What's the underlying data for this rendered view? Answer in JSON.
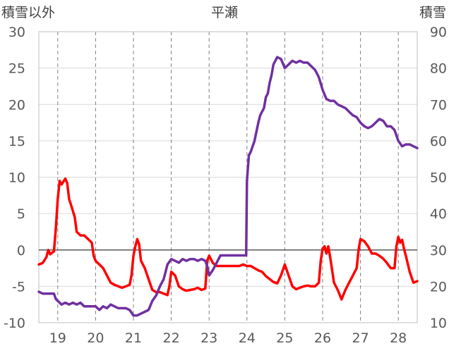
{
  "chart_data": {
    "type": "line",
    "title": "平瀬",
    "y_left_label": "積雪以外",
    "y_right_label": "積雪",
    "x_ticks": [
      "19",
      "20",
      "21",
      "22",
      "23",
      "24",
      "25",
      "26",
      "27",
      "28"
    ],
    "x_range": [
      18.5,
      28.5
    ],
    "y_left_range": [
      -10,
      30
    ],
    "y_left_ticks": [
      30,
      25,
      20,
      15,
      10,
      5,
      0,
      -5,
      -10
    ],
    "y_right_range": [
      10,
      90
    ],
    "y_right_ticks": [
      90,
      80,
      70,
      60,
      50,
      40,
      30,
      20,
      10
    ],
    "grid": {
      "x_dashed": true,
      "y": true
    },
    "series": [
      {
        "axis": "left",
        "color": "#ff0000",
        "points": [
          [
            18.5,
            -2.0
          ],
          [
            18.6,
            -1.8
          ],
          [
            18.7,
            -1.0
          ],
          [
            18.75,
            0.0
          ],
          [
            18.8,
            -0.6
          ],
          [
            18.9,
            -0.2
          ],
          [
            18.95,
            3.0
          ],
          [
            19.0,
            7.0
          ],
          [
            19.05,
            9.5
          ],
          [
            19.1,
            9.0
          ],
          [
            19.2,
            9.8
          ],
          [
            19.25,
            9.2
          ],
          [
            19.3,
            7.0
          ],
          [
            19.35,
            6.2
          ],
          [
            19.45,
            4.5
          ],
          [
            19.5,
            2.5
          ],
          [
            19.6,
            2.0
          ],
          [
            19.7,
            2.0
          ],
          [
            19.8,
            1.5
          ],
          [
            19.9,
            1.0
          ],
          [
            19.95,
            -0.8
          ],
          [
            20.0,
            -1.5
          ],
          [
            20.1,
            -2.0
          ],
          [
            20.2,
            -2.5
          ],
          [
            20.3,
            -3.5
          ],
          [
            20.4,
            -4.5
          ],
          [
            20.5,
            -4.8
          ],
          [
            20.6,
            -5.0
          ],
          [
            20.7,
            -5.2
          ],
          [
            20.8,
            -5.0
          ],
          [
            20.9,
            -4.8
          ],
          [
            20.95,
            -3.5
          ],
          [
            21.0,
            -0.8
          ],
          [
            21.05,
            0.5
          ],
          [
            21.1,
            1.5
          ],
          [
            21.15,
            0.8
          ],
          [
            21.2,
            -1.5
          ],
          [
            21.3,
            -2.5
          ],
          [
            21.4,
            -4.0
          ],
          [
            21.5,
            -5.5
          ],
          [
            21.6,
            -5.8
          ],
          [
            21.7,
            -5.8
          ],
          [
            21.8,
            -6.0
          ],
          [
            21.9,
            -6.2
          ],
          [
            21.95,
            -5.0
          ],
          [
            22.0,
            -3.0
          ],
          [
            22.1,
            -3.5
          ],
          [
            22.2,
            -5.0
          ],
          [
            22.3,
            -5.4
          ],
          [
            22.4,
            -5.6
          ],
          [
            22.5,
            -5.5
          ],
          [
            22.6,
            -5.4
          ],
          [
            22.7,
            -5.2
          ],
          [
            22.8,
            -5.5
          ],
          [
            22.9,
            -5.3
          ],
          [
            22.95,
            -1.5
          ],
          [
            23.0,
            -0.8
          ],
          [
            23.1,
            -1.8
          ],
          [
            23.2,
            -2.2
          ],
          [
            23.3,
            -2.2
          ],
          [
            23.4,
            -2.2
          ],
          [
            23.5,
            -2.2
          ],
          [
            23.6,
            -2.2
          ],
          [
            23.7,
            -2.2
          ],
          [
            23.8,
            -2.2
          ],
          [
            23.9,
            -2.0
          ],
          [
            24.0,
            -2.2
          ],
          [
            24.1,
            -2.2
          ],
          [
            24.2,
            -2.5
          ],
          [
            24.3,
            -2.8
          ],
          [
            24.4,
            -3.0
          ],
          [
            24.5,
            -3.6
          ],
          [
            24.6,
            -4.0
          ],
          [
            24.7,
            -4.4
          ],
          [
            24.8,
            -4.6
          ],
          [
            24.9,
            -3.5
          ],
          [
            25.0,
            -2.0
          ],
          [
            25.1,
            -3.5
          ],
          [
            25.2,
            -5.0
          ],
          [
            25.3,
            -5.4
          ],
          [
            25.4,
            -5.2
          ],
          [
            25.5,
            -5.0
          ],
          [
            25.6,
            -4.9
          ],
          [
            25.7,
            -5.0
          ],
          [
            25.8,
            -5.0
          ],
          [
            25.9,
            -4.5
          ],
          [
            25.95,
            -1.5
          ],
          [
            26.0,
            0.2
          ],
          [
            26.05,
            0.5
          ],
          [
            26.1,
            -0.5
          ],
          [
            26.15,
            0.5
          ],
          [
            26.2,
            -1.0
          ],
          [
            26.3,
            -4.5
          ],
          [
            26.4,
            -5.5
          ],
          [
            26.5,
            -6.8
          ],
          [
            26.6,
            -5.5
          ],
          [
            26.7,
            -4.5
          ],
          [
            26.8,
            -3.5
          ],
          [
            26.9,
            -2.5
          ],
          [
            26.95,
            0.0
          ],
          [
            27.0,
            1.5
          ],
          [
            27.1,
            1.2
          ],
          [
            27.2,
            0.5
          ],
          [
            27.3,
            -0.5
          ],
          [
            27.4,
            -0.5
          ],
          [
            27.5,
            -0.8
          ],
          [
            27.6,
            -1.2
          ],
          [
            27.7,
            -1.8
          ],
          [
            27.8,
            -2.5
          ],
          [
            27.9,
            -2.5
          ],
          [
            27.95,
            0.5
          ],
          [
            28.0,
            1.8
          ],
          [
            28.05,
            1.0
          ],
          [
            28.1,
            1.4
          ],
          [
            28.15,
            0.2
          ],
          [
            28.2,
            -0.8
          ],
          [
            28.3,
            -3.0
          ],
          [
            28.4,
            -4.5
          ],
          [
            28.5,
            -4.3
          ]
        ]
      },
      {
        "axis": "right",
        "color": "#7030a0",
        "points": [
          [
            18.5,
            18.5
          ],
          [
            18.6,
            18.0
          ],
          [
            18.7,
            18.0
          ],
          [
            18.8,
            18.0
          ],
          [
            18.9,
            18.0
          ],
          [
            18.95,
            16.5
          ],
          [
            19.0,
            16.0
          ],
          [
            19.1,
            15.0
          ],
          [
            19.2,
            15.5
          ],
          [
            19.3,
            15.0
          ],
          [
            19.4,
            15.5
          ],
          [
            19.5,
            15.0
          ],
          [
            19.6,
            15.5
          ],
          [
            19.7,
            14.5
          ],
          [
            19.8,
            14.5
          ],
          [
            19.9,
            14.5
          ],
          [
            20.0,
            14.5
          ],
          [
            20.1,
            13.5
          ],
          [
            20.2,
            14.5
          ],
          [
            20.3,
            14.0
          ],
          [
            20.4,
            15.0
          ],
          [
            20.5,
            14.5
          ],
          [
            20.6,
            14.0
          ],
          [
            20.7,
            14.0
          ],
          [
            20.8,
            14.0
          ],
          [
            20.9,
            13.5
          ],
          [
            21.0,
            12.0
          ],
          [
            21.1,
            12.0
          ],
          [
            21.2,
            12.5
          ],
          [
            21.3,
            13.0
          ],
          [
            21.4,
            13.5
          ],
          [
            21.5,
            16.0
          ],
          [
            21.6,
            17.5
          ],
          [
            21.7,
            20.0
          ],
          [
            21.8,
            22.0
          ],
          [
            21.9,
            26.0
          ],
          [
            22.0,
            27.5
          ],
          [
            22.1,
            27.0
          ],
          [
            22.2,
            26.5
          ],
          [
            22.3,
            27.5
          ],
          [
            22.4,
            27.0
          ],
          [
            22.5,
            27.5
          ],
          [
            22.6,
            27.5
          ],
          [
            22.7,
            27.0
          ],
          [
            22.8,
            27.5
          ],
          [
            22.9,
            27.0
          ],
          [
            22.95,
            25.5
          ],
          [
            23.0,
            23.0
          ],
          [
            23.1,
            24.5
          ],
          [
            23.2,
            26.5
          ],
          [
            23.3,
            28.5
          ],
          [
            23.4,
            28.5
          ],
          [
            23.5,
            28.5
          ],
          [
            23.6,
            28.5
          ],
          [
            23.7,
            28.5
          ],
          [
            23.8,
            28.5
          ],
          [
            23.9,
            28.5
          ],
          [
            23.98,
            28.5
          ],
          [
            24.0,
            49.0
          ],
          [
            24.05,
            56.0
          ],
          [
            24.1,
            57.0
          ],
          [
            24.2,
            60.0
          ],
          [
            24.3,
            65.0
          ],
          [
            24.35,
            67.0
          ],
          [
            24.4,
            68.0
          ],
          [
            24.45,
            69.0
          ],
          [
            24.5,
            72.0
          ],
          [
            24.55,
            73.0
          ],
          [
            24.6,
            76.0
          ],
          [
            24.65,
            78.0
          ],
          [
            24.7,
            81.0
          ],
          [
            24.75,
            82.0
          ],
          [
            24.8,
            83.0
          ],
          [
            24.9,
            82.5
          ],
          [
            25.0,
            80.0
          ],
          [
            25.1,
            81.0
          ],
          [
            25.2,
            82.0
          ],
          [
            25.3,
            81.5
          ],
          [
            25.4,
            82.0
          ],
          [
            25.5,
            81.5
          ],
          [
            25.6,
            81.5
          ],
          [
            25.7,
            80.5
          ],
          [
            25.8,
            79.5
          ],
          [
            25.9,
            77.5
          ],
          [
            26.0,
            74.0
          ],
          [
            26.1,
            71.5
          ],
          [
            26.2,
            71.0
          ],
          [
            26.3,
            71.0
          ],
          [
            26.4,
            70.0
          ],
          [
            26.5,
            69.5
          ],
          [
            26.6,
            69.0
          ],
          [
            26.7,
            68.0
          ],
          [
            26.8,
            67.0
          ],
          [
            26.9,
            66.5
          ],
          [
            27.0,
            65.0
          ],
          [
            27.1,
            64.0
          ],
          [
            27.2,
            63.5
          ],
          [
            27.3,
            64.0
          ],
          [
            27.4,
            65.0
          ],
          [
            27.5,
            66.0
          ],
          [
            27.6,
            65.5
          ],
          [
            27.7,
            64.0
          ],
          [
            27.8,
            64.0
          ],
          [
            27.9,
            63.0
          ],
          [
            28.0,
            60.0
          ],
          [
            28.1,
            58.5
          ],
          [
            28.2,
            59.0
          ],
          [
            28.3,
            59.0
          ],
          [
            28.4,
            58.5
          ],
          [
            28.5,
            58.0
          ]
        ]
      }
    ]
  }
}
